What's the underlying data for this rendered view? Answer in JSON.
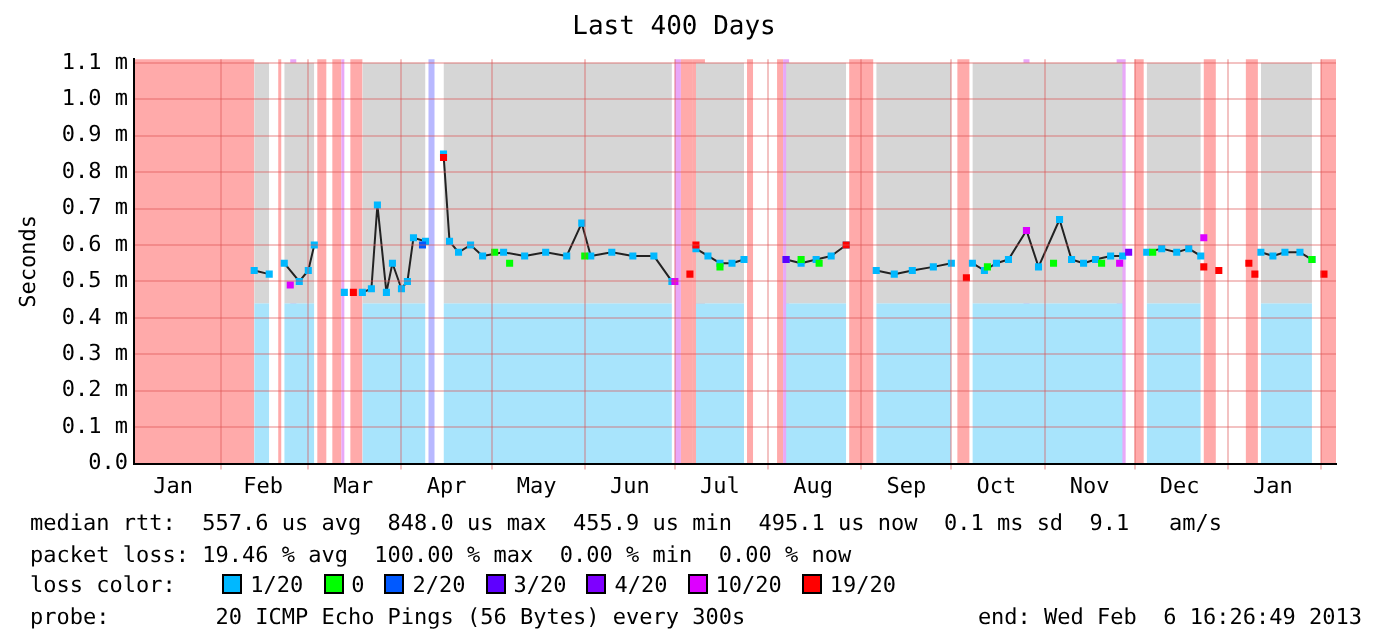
{
  "chart_data": {
    "type": "line",
    "title": "Last 400 Days",
    "ylabel": "Seconds",
    "legend_title": "loss color:",
    "legend": "bottom",
    "grid": true,
    "xlim": [
      "2012-01-03",
      "2013-02-06"
    ],
    "xticks": [
      {
        "value": "2012-01-16",
        "label": "Jan"
      },
      {
        "value": "2012-02-01",
        "label": null
      },
      {
        "value": "2012-02-15",
        "label": "Feb"
      },
      {
        "value": "2012-03-01",
        "label": null
      },
      {
        "value": "2012-03-16",
        "label": "Mar"
      },
      {
        "value": "2012-04-01",
        "label": null
      },
      {
        "value": "2012-04-16",
        "label": "Apr"
      },
      {
        "value": "2012-05-01",
        "label": null
      },
      {
        "value": "2012-05-16",
        "label": "May"
      },
      {
        "value": "2012-06-01",
        "label": null
      },
      {
        "value": "2012-06-16",
        "label": "Jun"
      },
      {
        "value": "2012-07-01",
        "label": null
      },
      {
        "value": "2012-07-16",
        "label": "Jul"
      },
      {
        "value": "2012-08-01",
        "label": null
      },
      {
        "value": "2012-08-16",
        "label": "Aug"
      },
      {
        "value": "2012-09-01",
        "label": null
      },
      {
        "value": "2012-09-16",
        "label": "Sep"
      },
      {
        "value": "2012-10-01",
        "label": null
      },
      {
        "value": "2012-10-16",
        "label": "Oct"
      },
      {
        "value": "2012-11-01",
        "label": null
      },
      {
        "value": "2012-11-16",
        "label": "Nov"
      },
      {
        "value": "2012-12-01",
        "label": null
      },
      {
        "value": "2012-12-16",
        "label": "Dec"
      },
      {
        "value": "2013-01-01",
        "label": null
      },
      {
        "value": "2013-01-16",
        "label": "Jan"
      },
      {
        "value": "2013-02-01",
        "label": null
      }
    ],
    "ylim": [
      0,
      1.11
    ],
    "yticks": [
      {
        "value": 0,
        "label": "0.0"
      },
      {
        "value": 0.1,
        "label": "0.1 m"
      },
      {
        "value": 0.2,
        "label": "0.2 m"
      },
      {
        "value": 0.3,
        "label": "0.3 m"
      },
      {
        "value": 0.4,
        "label": "0.4 m"
      },
      {
        "value": 0.5,
        "label": "0.5 m"
      },
      {
        "value": 0.6,
        "label": "0.6 m"
      },
      {
        "value": 0.7,
        "label": "0.7 m"
      },
      {
        "value": 0.8,
        "label": "0.8 m"
      },
      {
        "value": 0.9,
        "label": "0.9 m"
      },
      {
        "value": 1.0,
        "label": "1.0 m"
      },
      {
        "value": 1.1,
        "label": "1.1 m"
      }
    ],
    "bands": [
      {
        "axis": "x",
        "from": "2012-01-03",
        "to": "2012-02-12",
        "color": "#ffaaaa"
      },
      {
        "axis": "x",
        "from": "2012-02-20",
        "to": "2012-02-21",
        "color": "#ffaaaa"
      },
      {
        "axis": "x",
        "from": "2012-02-24",
        "to": "2012-02-26",
        "color": "#e8a8f8"
      },
      {
        "axis": "x",
        "from": "2012-03-04",
        "to": "2012-03-07",
        "color": "#ffaaaa"
      },
      {
        "axis": "x",
        "from": "2012-03-09",
        "to": "2012-03-12",
        "color": "#ffaaaa"
      },
      {
        "axis": "x",
        "from": "2012-03-12",
        "to": "2012-03-13",
        "color": "#e8a8f8"
      },
      {
        "axis": "x",
        "from": "2012-03-15",
        "to": "2012-03-19",
        "color": "#ffaaaa"
      },
      {
        "axis": "x",
        "from": "2012-04-10",
        "to": "2012-04-12",
        "color": "#b8b8ff"
      },
      {
        "axis": "x",
        "from": "2012-07-01",
        "to": "2012-07-03",
        "color": "#e8a8f8"
      },
      {
        "axis": "x",
        "from": "2012-07-03",
        "to": "2012-07-07",
        "color": "#ffaaaa"
      },
      {
        "axis": "x",
        "from": "2012-07-07",
        "to": "2012-07-11",
        "color": "#ffaaaa"
      },
      {
        "axis": "x",
        "from": "2012-07-25",
        "to": "2012-07-27",
        "color": "#ffaaaa"
      },
      {
        "axis": "x",
        "from": "2012-08-04",
        "to": "2012-08-06",
        "color": "#ffaaaa"
      },
      {
        "axis": "x",
        "from": "2012-08-06",
        "to": "2012-08-08",
        "color": "#e8a8f8"
      },
      {
        "axis": "x",
        "from": "2012-08-28",
        "to": "2012-09-05",
        "color": "#ffaaaa"
      },
      {
        "axis": "x",
        "from": "2012-10-03",
        "to": "2012-10-07",
        "color": "#ffaaaa"
      },
      {
        "axis": "x",
        "from": "2012-10-25",
        "to": "2012-10-27",
        "color": "#e8a8f8"
      },
      {
        "axis": "x",
        "from": "2012-11-25",
        "to": "2012-11-28",
        "color": "#e8a8f8"
      },
      {
        "axis": "x",
        "from": "2012-12-01",
        "to": "2012-12-04",
        "color": "#ffaaaa"
      },
      {
        "axis": "x",
        "from": "2012-12-24",
        "to": "2012-12-28",
        "color": "#ffaaaa"
      },
      {
        "axis": "x",
        "from": "2013-01-07",
        "to": "2013-01-11",
        "color": "#ffaaaa"
      },
      {
        "axis": "x",
        "from": "2013-02-01",
        "to": "2013-02-06",
        "color": "#ffaaaa"
      }
    ],
    "series": [
      {
        "type": "area",
        "color": "#a8e4fc",
        "x": [
          "2012-02-12",
          "2012-02-17",
          "2012-02-20",
          "2012-02-22",
          "2012-02-27",
          "2012-03-01",
          "2012-03-03",
          "2012-03-05",
          "2012-03-13",
          "2012-03-15",
          "2012-03-19",
          "2012-03-22",
          "2012-03-24",
          "2012-03-27",
          "2012-03-29",
          "2012-04-01",
          "2012-04-03",
          "2012-04-05",
          "2012-04-09",
          "2012-04-11",
          "2012-04-15",
          "2012-04-17",
          "2012-04-20",
          "2012-04-24",
          "2012-04-28",
          "2012-05-05",
          "2012-05-12",
          "2012-05-19",
          "2012-05-26",
          "2012-05-31",
          "2012-06-03",
          "2012-06-10",
          "2012-06-17",
          "2012-06-24",
          "2012-06-30",
          "2012-07-02",
          "2012-07-08",
          "2012-07-12",
          "2012-07-16",
          "2012-07-20",
          "2012-07-24",
          "2012-07-26",
          "2012-08-07",
          "2012-08-12",
          "2012-08-17",
          "2012-08-22",
          "2012-08-27",
          "2012-08-29",
          "2012-09-06",
          "2012-09-12",
          "2012-09-18",
          "2012-09-25",
          "2012-10-01",
          "2012-10-04",
          "2012-10-08",
          "2012-10-12",
          "2012-10-16",
          "2012-10-20",
          "2012-10-26",
          "2012-10-30",
          "2012-11-06",
          "2012-11-10",
          "2012-11-14",
          "2012-11-18",
          "2012-11-23",
          "2012-11-27",
          "2012-11-30",
          "2012-12-05",
          "2012-12-10",
          "2012-12-15",
          "2012-12-19",
          "2012-12-23",
          "2012-12-25",
          "2013-01-12",
          "2013-01-16",
          "2013-01-20",
          "2013-01-25",
          "2013-01-29"
        ],
        "values": [
          0.44,
          0.44,
          null,
          0.44,
          0.44,
          0.44,
          0.44,
          null,
          null,
          null,
          0.44,
          0.44,
          0.44,
          0.44,
          0.44,
          0.44,
          0.44,
          0.44,
          0.44,
          null,
          0.44,
          0.44,
          0.44,
          0.44,
          0.44,
          0.44,
          0.44,
          0.44,
          0.44,
          0.44,
          0.44,
          0.44,
          0.44,
          0.44,
          0.44,
          null,
          0.44,
          0.44,
          0.44,
          0.44,
          0.44,
          null,
          0.44,
          0.44,
          0.44,
          0.44,
          0.44,
          null,
          0.44,
          0.44,
          0.44,
          0.44,
          0.44,
          null,
          0.44,
          0.44,
          0.44,
          0.44,
          0.44,
          0.44,
          0.44,
          0.44,
          0.44,
          0.44,
          0.44,
          0.44,
          null,
          0.44,
          0.44,
          0.44,
          0.44,
          0.44,
          null,
          0.44,
          0.44,
          0.44,
          0.44,
          0.44
        ]
      },
      {
        "name": "1/20",
        "type": "line",
        "color": "#00b8ff",
        "marker": "square",
        "x": [
          "2012-02-12",
          "2012-02-17",
          "2012-02-20",
          "2012-02-22",
          "2012-02-27",
          "2012-03-01",
          "2012-03-03",
          "2012-03-05",
          "2012-03-13",
          "2012-03-15",
          "2012-03-19",
          "2012-03-22",
          "2012-03-24",
          "2012-03-27",
          "2012-03-29",
          "2012-04-01",
          "2012-04-03",
          "2012-04-05",
          "2012-04-09",
          "2012-04-11",
          "2012-04-15",
          "2012-04-17",
          "2012-04-20",
          "2012-04-24",
          "2012-04-28",
          "2012-05-05",
          "2012-05-12",
          "2012-05-19",
          "2012-05-26",
          "2012-05-31",
          "2012-06-03",
          "2012-06-10",
          "2012-06-17",
          "2012-06-24",
          "2012-06-30",
          "2012-07-02",
          "2012-07-08",
          "2012-07-12",
          "2012-07-16",
          "2012-07-20",
          "2012-07-24",
          "2012-07-26",
          "2012-08-07",
          "2012-08-12",
          "2012-08-17",
          "2012-08-22",
          "2012-08-27",
          "2012-08-29",
          "2012-09-06",
          "2012-09-12",
          "2012-09-18",
          "2012-09-25",
          "2012-10-01",
          "2012-10-04",
          "2012-10-08",
          "2012-10-12",
          "2012-10-16",
          "2012-10-20",
          "2012-10-26",
          "2012-10-30",
          "2012-11-06",
          "2012-11-10",
          "2012-11-14",
          "2012-11-18",
          "2012-11-23",
          "2012-11-27",
          "2012-11-30",
          "2012-12-05",
          "2012-12-10",
          "2012-12-15",
          "2012-12-19",
          "2012-12-23",
          "2012-12-25",
          "2013-01-12",
          "2013-01-16",
          "2013-01-20",
          "2013-01-25",
          "2013-01-29"
        ],
        "values": [
          0.53,
          0.52,
          null,
          0.55,
          0.5,
          0.53,
          0.6,
          null,
          0.47,
          null,
          0.47,
          0.48,
          0.71,
          0.47,
          0.55,
          0.48,
          0.5,
          0.62,
          0.61,
          null,
          0.85,
          0.61,
          0.58,
          0.6,
          0.57,
          0.58,
          0.57,
          0.58,
          0.57,
          0.66,
          0.57,
          0.58,
          0.57,
          0.57,
          0.5,
          null,
          0.59,
          0.57,
          0.55,
          0.55,
          0.56,
          null,
          0.56,
          0.55,
          0.56,
          0.57,
          0.6,
          null,
          0.53,
          0.52,
          0.53,
          0.54,
          0.55,
          null,
          0.55,
          0.53,
          0.55,
          0.56,
          0.64,
          0.54,
          0.67,
          0.56,
          0.55,
          0.56,
          0.57,
          0.57,
          null,
          0.58,
          0.59,
          0.58,
          0.59,
          0.57,
          null,
          0.58,
          0.57,
          0.58,
          0.58,
          0.56
        ],
        "lower": [
          0.44,
          0.44,
          null,
          0.44,
          0.44,
          0.44,
          0.44,
          null,
          null,
          null,
          0.44,
          0.44,
          0.44,
          0.44,
          0.44,
          0.44,
          0.44,
          0.44,
          0.44,
          null,
          0.44,
          0.44,
          0.44,
          0.44,
          0.44,
          0.44,
          0.44,
          0.44,
          0.44,
          0.44,
          0.44,
          0.44,
          0.44,
          0.44,
          0.44,
          null,
          0.44,
          0.44,
          0.44,
          0.44,
          0.44,
          null,
          0.44,
          0.44,
          0.44,
          0.44,
          0.44,
          null,
          0.44,
          0.44,
          0.44,
          0.44,
          0.44,
          null,
          0.44,
          0.44,
          0.44,
          0.44,
          0.44,
          0.44,
          0.44,
          0.44,
          0.44,
          0.44,
          0.44,
          0.44,
          null,
          0.44,
          0.44,
          0.44,
          0.44,
          0.44,
          null,
          0.44,
          0.44,
          0.44,
          0.44,
          0.44
        ],
        "upper": [
          1.1,
          1.1,
          null,
          1.1,
          1.1,
          1.1,
          1.1,
          null,
          null,
          null,
          1.1,
          1.1,
          1.1,
          1.1,
          1.1,
          1.1,
          1.1,
          1.1,
          1.1,
          null,
          1.1,
          1.1,
          1.1,
          1.1,
          1.1,
          1.1,
          1.1,
          1.1,
          1.1,
          1.1,
          1.1,
          1.1,
          1.1,
          1.1,
          1.1,
          null,
          1.1,
          1.1,
          1.1,
          1.1,
          1.1,
          null,
          1.1,
          1.1,
          1.1,
          1.1,
          1.1,
          null,
          1.1,
          1.1,
          1.1,
          1.1,
          1.1,
          null,
          1.1,
          1.1,
          1.1,
          1.1,
          1.1,
          1.1,
          1.1,
          1.1,
          1.1,
          1.1,
          1.1,
          1.1,
          null,
          1.1,
          1.1,
          1.1,
          1.1,
          1.1,
          null,
          1.1,
          1.1,
          1.1,
          1.1,
          1.1
        ]
      },
      {
        "name": "0",
        "type": "scatter",
        "color": "#00ff00",
        "marker": "square",
        "x": [
          "2012-05-02",
          "2012-05-07",
          "2012-06-01",
          "2012-07-16",
          "2012-08-12",
          "2012-08-18",
          "2012-10-13",
          "2012-11-04",
          "2012-11-20",
          "2012-12-07",
          "2013-01-29"
        ],
        "values": [
          0.58,
          0.55,
          0.57,
          0.54,
          0.56,
          0.55,
          0.54,
          0.55,
          0.55,
          0.58,
          0.56
        ]
      },
      {
        "name": "2/20",
        "type": "scatter",
        "color": "#0059ff",
        "marker": "square",
        "x": [
          "2012-04-08"
        ],
        "values": [
          0.6
        ]
      },
      {
        "name": "3/20",
        "type": "scatter",
        "color": "#5e00ff",
        "marker": "square",
        "x": [
          "2012-08-07"
        ],
        "values": [
          0.56
        ]
      },
      {
        "name": "4/20",
        "type": "scatter",
        "color": "#7e00ff",
        "marker": "square",
        "x": [
          "2012-11-29"
        ],
        "values": [
          0.58
        ]
      },
      {
        "name": "10/20",
        "type": "scatter",
        "color": "#dd00ff",
        "marker": "square",
        "x": [
          "2012-02-24",
          "2012-07-01",
          "2012-10-26",
          "2012-11-26",
          "2012-12-24"
        ],
        "values": [
          0.49,
          0.5,
          0.64,
          0.55,
          0.62
        ]
      },
      {
        "name": "19/20",
        "type": "scatter",
        "color": "#ff0000",
        "marker": "square",
        "x": [
          "2012-03-16",
          "2012-04-15",
          "2012-07-06",
          "2012-07-08",
          "2012-08-27",
          "2012-10-06",
          "2012-12-24",
          "2012-12-29",
          "2013-01-08",
          "2013-01-10",
          "2013-02-02"
        ],
        "values": [
          0.47,
          0.84,
          0.52,
          0.6,
          0.6,
          0.51,
          0.54,
          0.53,
          0.55,
          0.52,
          0.52
        ]
      }
    ],
    "annotations": [
      "median rtt:  557.6 us avg  848.0 us max  455.9 us min  495.1 us now  0.1 ms sd  9.1   am/s",
      "packet loss: 19.46 % avg  100.00 % max  0.00 % min  0.00 % now",
      "probe:        20 ICMP Echo Pings (56 Bytes) every 300s",
      "end: Wed Feb  6 16:26:49 2013"
    ]
  }
}
